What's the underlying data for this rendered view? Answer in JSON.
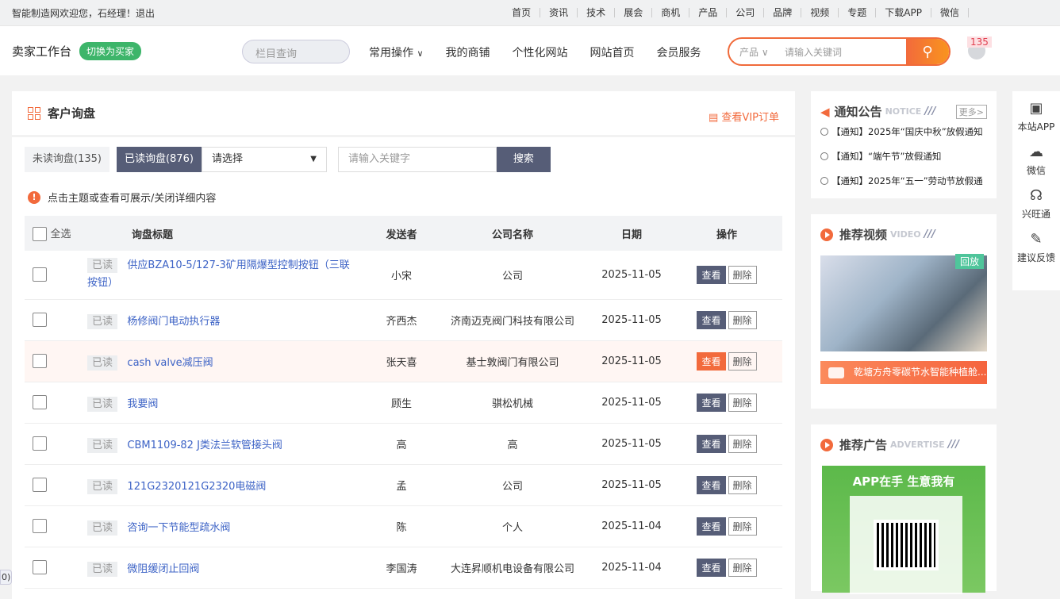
{
  "topbar": {
    "welcome": "智能制造网欢迎您，石经理！退出",
    "links": [
      "首页",
      "资讯",
      "技术",
      "展会",
      "商机",
      "产品",
      "公司",
      "品牌",
      "视频",
      "专题",
      "下载APP",
      "微信"
    ]
  },
  "header": {
    "brand": "卖家工作台",
    "switch_label": "切换为买家",
    "column_search_placeholder": "栏目查询",
    "nav": [
      "常用操作",
      "我的商铺",
      "个性化网站",
      "网站首页",
      "会员服务"
    ],
    "search_category": "产品",
    "search_placeholder": "请输入关键词",
    "notification_count": "135"
  },
  "main": {
    "title": "客户询盘",
    "vip_link": "查看VIP订单",
    "tabs": [
      "未读询盘(135)",
      "已读询盘(876)"
    ],
    "select_value": "请选择",
    "keyword_placeholder": "请输入关键字",
    "search_label": "搜索",
    "tip": "点击主题或查看可展示/关闭详细内容",
    "columns": [
      "全选",
      "询盘标题",
      "发送者",
      "公司名称",
      "日期",
      "操作"
    ],
    "view_label": "查看",
    "delete_label": "删除",
    "rows": [
      {
        "status": "已读",
        "title": "供应BZA10-5/127-3矿用隔爆型控制按钮（三联按钮）",
        "sender": "小宋",
        "company": "公司",
        "date": "2025-11-05"
      },
      {
        "status": "已读",
        "title": "杨修阀门电动执行器",
        "sender": "齐西杰",
        "company": "济南迈克阀门科技有限公司",
        "date": "2025-11-05"
      },
      {
        "status": "已读",
        "title": "cash valve减压阀",
        "sender": "张天喜",
        "company": "基士敦阀门有限公司",
        "date": "2025-11-05",
        "highlighted": true
      },
      {
        "status": "已读",
        "title": "我要阀",
        "sender": "顾生",
        "company": "骐松机械",
        "date": "2025-11-05"
      },
      {
        "status": "已读",
        "title": "CBM1109-82 J类法兰软管接头阀",
        "sender": "高",
        "company": "高",
        "date": "2025-11-05"
      },
      {
        "status": "已读",
        "title": "121G2320121G2320电磁阀",
        "sender": "孟",
        "company": "公司",
        "date": "2025-11-05"
      },
      {
        "status": "已读",
        "title": "咨询一下节能型疏水阀",
        "sender": "陈",
        "company": "个人",
        "date": "2025-11-04"
      },
      {
        "status": "已读",
        "title": "微阻缓闭止回阀",
        "sender": "李国涛",
        "company": "大连昇顺机电设备有限公司",
        "date": "2025-11-04"
      }
    ]
  },
  "notice": {
    "title": "通知公告",
    "en": "NOTICE",
    "more": "更多>",
    "items": [
      "【通知】2025年“国庆中秋”放假通知",
      "【通知】“端午节”放假通知",
      "【通知】2025年“五一”劳动节放假通"
    ]
  },
  "video": {
    "title": "推荐视频",
    "en": "VIDEO",
    "badge": "回放",
    "caption": "乾塘方舟零碳节水智能种植舱..."
  },
  "ad": {
    "title": "推荐广告",
    "en": "ADVERTISE",
    "slogan": "APP在手 生意我有"
  },
  "float_side": [
    "本站APP",
    "微信",
    "兴旺通",
    "建议反馈"
  ],
  "corner_text": "0)",
  "colors": {
    "accent": "#f26a3c",
    "primary": "#565d77",
    "link": "#3d63c6",
    "green": "#3db56a"
  }
}
